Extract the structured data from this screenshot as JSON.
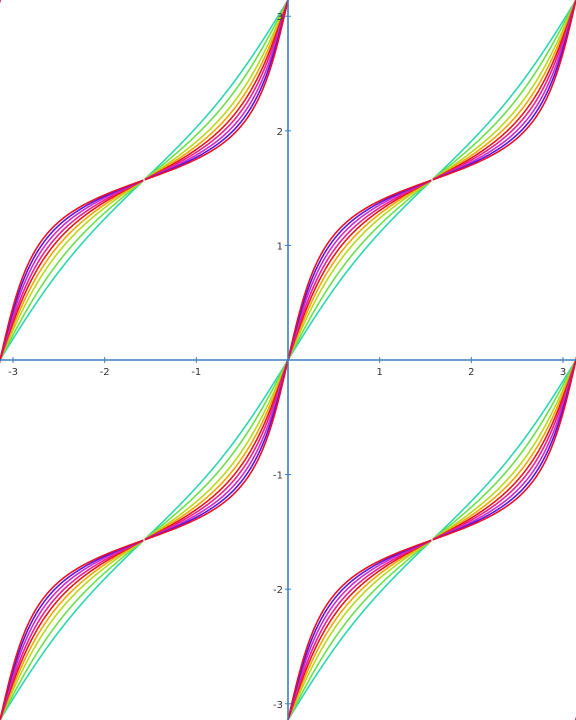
{
  "chart_data": {
    "type": "line",
    "title": "",
    "xlabel": "",
    "ylabel": "",
    "xlim": [
      -3.14159,
      3.14159
    ],
    "ylim": [
      -3.14159,
      3.14159
    ],
    "grid": false,
    "legend": "none",
    "x_ticks": [
      {
        "value": -3,
        "label": "-3"
      },
      {
        "value": -2,
        "label": "-2"
      },
      {
        "value": -1,
        "label": "-1"
      },
      {
        "value": 1,
        "label": "1"
      },
      {
        "value": 2,
        "label": "2"
      },
      {
        "value": 3,
        "label": "3"
      }
    ],
    "y_ticks": [
      {
        "value": 3,
        "label": "3"
      },
      {
        "value": 2,
        "label": "2"
      },
      {
        "value": 1,
        "label": "1"
      },
      {
        "value": -1,
        "label": "-1"
      },
      {
        "value": -2,
        "label": "-2"
      },
      {
        "value": -3,
        "label": "-3"
      }
    ],
    "curve_family": "y = arctan(k * tan(x)) + n*pi, branches wrapped to [-pi, pi]",
    "series": [
      {
        "k": 1.3,
        "color": "#2ed5b0"
      },
      {
        "k": 1.55,
        "color": "#6be04a"
      },
      {
        "k": 1.85,
        "color": "#b8d81c"
      },
      {
        "k": 2.1,
        "color": "#f2a400"
      },
      {
        "k": 2.35,
        "color": "#e81818"
      },
      {
        "k": 2.6,
        "color": "#ee1e8c"
      },
      {
        "k": 2.9,
        "color": "#c82ad2"
      },
      {
        "k": 3.2,
        "color": "#5a18d8"
      },
      {
        "k": 3.5,
        "color": "#e8102a"
      }
    ]
  }
}
